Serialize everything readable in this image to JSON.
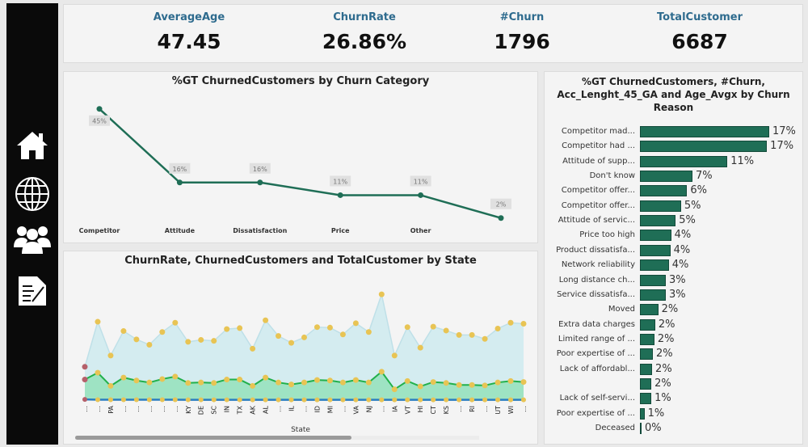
{
  "sidebar": {
    "items": [
      {
        "icon": "home-icon"
      },
      {
        "icon": "globe-icon"
      },
      {
        "icon": "users-icon"
      },
      {
        "icon": "report-icon"
      }
    ]
  },
  "kpis": [
    {
      "label": "AverageAge",
      "value": "47.45"
    },
    {
      "label": "ChurnRate",
      "value": "26.86%"
    },
    {
      "label": "#Churn",
      "value": "1796"
    },
    {
      "label": "TotalCustomer",
      "value": "6687"
    }
  ],
  "colors": {
    "accent": "#1f6e56",
    "kpi_label": "#2e6b8e",
    "total_area": "#d4ecf0",
    "churn_area": "#9ee3c3",
    "churn_line": "#22b04b",
    "rate_line": "#2a7dc0",
    "marker": "#e8c454",
    "first_marker": "#b5606a"
  },
  "chart_data": [
    {
      "type": "line",
      "title": "%GT ChurnedCustomers by Churn Category",
      "categories": [
        "Competitor",
        "Attitude",
        "Dissatisfaction",
        "Price",
        "Other",
        ""
      ],
      "values": [
        45,
        16,
        16,
        11,
        11,
        2
      ],
      "data_labels": [
        "45%",
        "16%",
        "16%",
        "11%",
        "11%",
        "2%"
      ]
    },
    {
      "type": "area",
      "title": "ChurnRate, ChurnedCustomers and TotalCustomer by State",
      "xlabel": "State",
      "categories": [
        "…",
        "…",
        "PA",
        "…",
        "…",
        "…",
        "…",
        "…",
        "KY",
        "DE",
        "SC",
        "IN",
        "TX",
        "AK",
        "AL",
        "…",
        "IL",
        "…",
        "ID",
        "MI",
        "…",
        "VA",
        "NJ",
        "…",
        "IA",
        "VT",
        "HI",
        "CT",
        "KS",
        "…",
        "RI",
        "…",
        "UT",
        "WI",
        "…"
      ],
      "total_customer": [
        68,
        160,
        91,
        141,
        124,
        113,
        139,
        158,
        119,
        123,
        121,
        145,
        147,
        105,
        163,
        131,
        117,
        128,
        149,
        148,
        134,
        157,
        139,
        216,
        91,
        149,
        107,
        150,
        142,
        133,
        133,
        125,
        146,
        158,
        156
      ],
      "churned_customers": [
        42,
        56,
        29,
        46,
        40,
        36,
        43,
        48,
        35,
        36,
        35,
        42,
        42,
        29,
        46,
        36,
        32,
        36,
        41,
        40,
        36,
        41,
        36,
        58,
        22,
        39,
        28,
        37,
        35,
        31,
        31,
        30,
        36,
        39,
        37
      ],
      "churn_rate": [
        0.62,
        0.35,
        0.32,
        0.33,
        0.32,
        0.32,
        0.31,
        0.3,
        0.29,
        0.29,
        0.29,
        0.29,
        0.29,
        0.28,
        0.28,
        0.27,
        0.27,
        0.28,
        0.28,
        0.27,
        0.27,
        0.26,
        0.26,
        0.27,
        0.24,
        0.26,
        0.26,
        0.25,
        0.25,
        0.23,
        0.23,
        0.24,
        0.25,
        0.25,
        0.24
      ]
    },
    {
      "type": "bar",
      "title": "%GT ChurnedCustomers, #Churn, Acc_Lenght_45_GA and Age_Avgx by Churn Reason",
      "categories": [
        "Competitor mad...",
        "Competitor had ...",
        "Attitude of supp...",
        "Don't know",
        "Competitor offer...",
        "Competitor offer...",
        "Attitude of servic...",
        "Price too high",
        "Product dissatisfa...",
        "Network reliability",
        "Long distance ch...",
        "Service dissatisfa...",
        "Moved",
        "Extra data charges",
        "Limited range of ...",
        "Poor expertise of ...",
        "Lack of affordabl...",
        "",
        "Lack of self-servi...",
        "Poor expertise of ...",
        "Deceased"
      ],
      "values": [
        17.0,
        16.7,
        11.5,
        6.9,
        6.2,
        5.4,
        4.7,
        4.1,
        4.0,
        3.8,
        3.4,
        3.4,
        2.4,
        2.0,
        1.9,
        1.7,
        1.6,
        1.5,
        1.5,
        0.6,
        0.2
      ],
      "data_labels": [
        "17%",
        "17%",
        "11%",
        "7%",
        "6%",
        "5%",
        "5%",
        "4%",
        "4%",
        "4%",
        "3%",
        "3%",
        "2%",
        "2%",
        "2%",
        "2%",
        "2%",
        "2%",
        "1%",
        "1%",
        "0%"
      ]
    }
  ]
}
